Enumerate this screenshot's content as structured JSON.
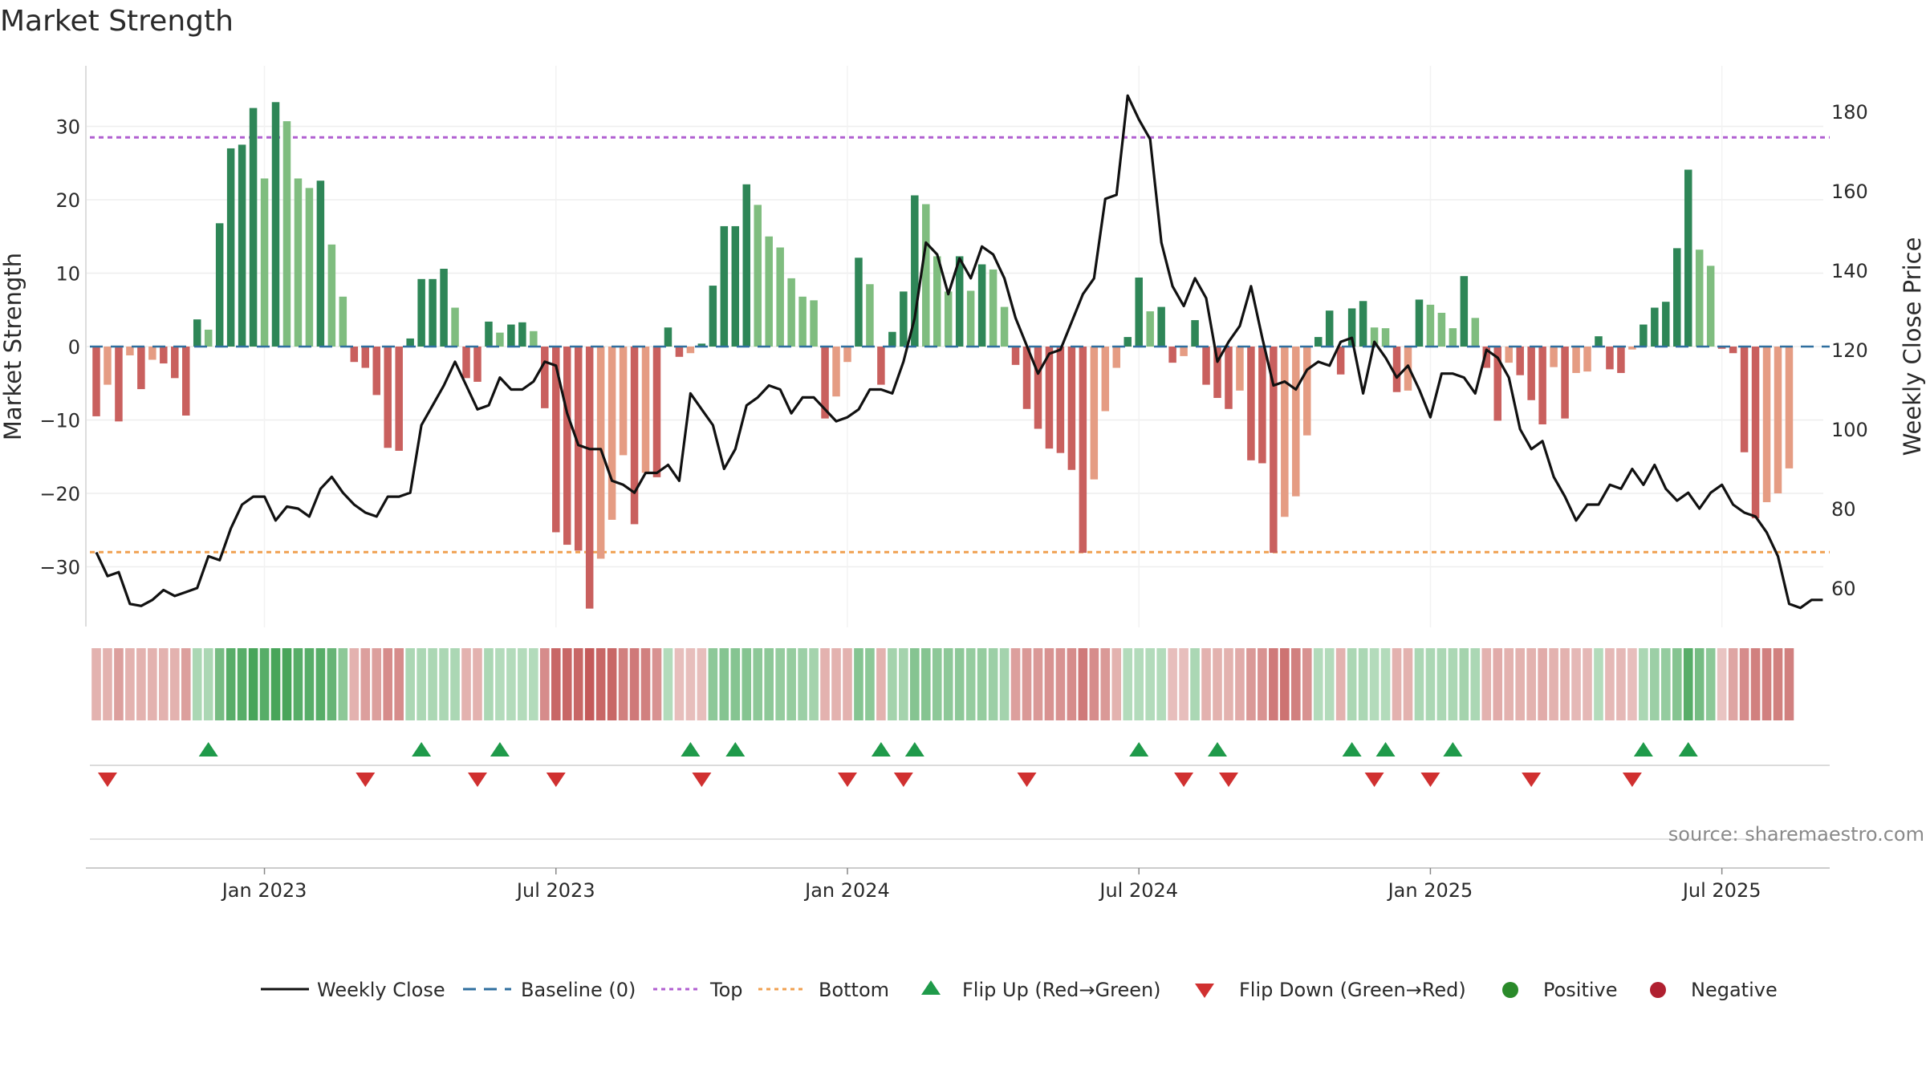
{
  "chart_data": {
    "type": "bar+line",
    "title": "Market Strength",
    "ylabel_left": "Market Strength",
    "ylabel_right": "Weekly Close Price",
    "ylim_left": [
      -38.5,
      38.5
    ],
    "ylim_right": [
      45,
      187
    ],
    "yticks_left": [
      30,
      20,
      10,
      0,
      -10,
      -20,
      -30
    ],
    "ytick_labels_left": [
      "30",
      "20",
      "10",
      "0",
      "−10",
      "−20",
      "−30"
    ],
    "yticks_right": [
      180,
      160,
      140,
      120,
      100,
      80,
      60
    ],
    "xtick_labels": [
      "Jan 2023",
      "Jul 2023",
      "Jan 2024",
      "Jul 2024",
      "Jan 2025",
      "Jul 2025"
    ],
    "xtick_weeks": [
      15,
      41,
      67,
      93,
      119,
      145
    ],
    "top_level": 28.5,
    "bottom_level": -28,
    "baseline": 0,
    "colors": {
      "pos_dark": "#2e8657",
      "pos_light": "#7fbd7f",
      "neg_dark": "#c9605e",
      "neg_light": "#e59c83",
      "top_line": "#b05fd0",
      "bottom_line": "#f0a050",
      "baseline": "#2f6f9f",
      "flip_up": "#1f9a4a",
      "flip_down": "#d03030",
      "positive_dot": "#2a8a2a",
      "negative_dot": "#b02030",
      "close_line": "#111111"
    },
    "series": [
      {
        "name": "Market Strength",
        "values": [
          -9.5,
          -5.2,
          -10.2,
          -1.2,
          -5.8,
          -1.8,
          -2.3,
          -4.3,
          -9.4,
          3.7,
          2.3,
          16.8,
          27,
          27.5,
          32.5,
          22.9,
          33.3,
          30.7,
          22.9,
          21.6,
          22.6,
          13.9,
          6.8,
          -2.1,
          -2.9,
          -6.6,
          -13.8,
          -14.2,
          1.1,
          9.2,
          9.2,
          10.6,
          5.3,
          -4.3,
          -4.8,
          3.4,
          1.9,
          3.0,
          3.3,
          2.1,
          -8.4,
          -25.3,
          -27.0,
          -27.8,
          -35.7,
          -28.9,
          -23.6,
          -14.8,
          -24.2,
          -17.2,
          -17.8,
          2.6,
          -1.4,
          -0.9,
          0.4,
          8.3,
          16.4,
          16.4,
          22.1,
          19.3,
          15.0,
          13.5,
          9.3,
          6.8,
          6.3,
          -9.8,
          -6.8,
          -2.1,
          12.1,
          8.5,
          -5.2,
          2.0,
          7.5,
          20.6,
          19.4,
          12.3,
          7.5,
          12.3,
          7.6,
          11.2,
          10.5,
          5.4,
          -2.5,
          -8.5,
          -11.2,
          -13.9,
          -14.5,
          -16.8,
          -28.1,
          -18.1,
          -8.8,
          -2.9,
          1.3,
          9.4,
          4.8,
          5.4,
          -2.2,
          -1.3,
          3.6,
          -5.2,
          -7.0,
          -8.5,
          -6.0,
          -15.5,
          -15.9,
          -28.1,
          -23.2,
          -20.4,
          -12.1,
          1.3,
          4.9,
          -3.8,
          5.2,
          6.2,
          2.6,
          2.5,
          -6.2,
          -6.0,
          6.4,
          5.7,
          4.6,
          2.5,
          9.6,
          3.9,
          -2.9,
          -10.1,
          -2.2,
          -3.9,
          -7.3,
          -10.6,
          -2.8,
          -9.8,
          -3.6,
          -3.4,
          1.4,
          -3.1,
          -3.6,
          -0.4,
          3.0,
          5.3,
          6.1,
          13.4,
          24.1,
          13.2,
          11.0,
          -0.3,
          -0.9,
          -14.4,
          -23.4,
          -21.2,
          -20.0,
          -16.6
        ]
      },
      {
        "name": "Weekly Close",
        "values": [
          69,
          63,
          64,
          56,
          55.5,
          57,
          59.5,
          58,
          59,
          60,
          68,
          67,
          75,
          81,
          83,
          83,
          77,
          80.5,
          80,
          78,
          85,
          88,
          84,
          81,
          79,
          78,
          83,
          83,
          84,
          101,
          106,
          111,
          117,
          111,
          105,
          106,
          113,
          110,
          110,
          112,
          117,
          116,
          104,
          96,
          95,
          95,
          87,
          86,
          84,
          89,
          89,
          91,
          87,
          109,
          105,
          101,
          90,
          95,
          106,
          108,
          111,
          110,
          104,
          108,
          108,
          105,
          102,
          103,
          105,
          110,
          110,
          109,
          117,
          128,
          147,
          144,
          134,
          143,
          138,
          146,
          144,
          138,
          128,
          121,
          114,
          119,
          120,
          127,
          134,
          138,
          158,
          159,
          184,
          178,
          173,
          147,
          136,
          131,
          138,
          133,
          117,
          122,
          126,
          136,
          123,
          111,
          112,
          110,
          115,
          117,
          116,
          122,
          123,
          109,
          122,
          118,
          113,
          116,
          110,
          103,
          114,
          114,
          113,
          109,
          120,
          118,
          113,
          100,
          95,
          97,
          88,
          83,
          77,
          81,
          81,
          86,
          85,
          90,
          86,
          91,
          85,
          82,
          84,
          80,
          84,
          86,
          81,
          79,
          78,
          74,
          68,
          56,
          55,
          57,
          57
        ]
      }
    ],
    "strength_band": {
      "name": "Strength regime band",
      "intensity": [
        -0.3,
        -0.3,
        -0.45,
        -0.3,
        -0.3,
        -0.3,
        -0.3,
        -0.3,
        -0.45,
        0.35,
        0.35,
        0.7,
        0.9,
        0.9,
        1.0,
        0.9,
        1.0,
        1.0,
        0.9,
        0.9,
        0.9,
        0.8,
        0.55,
        -0.3,
        -0.45,
        -0.45,
        -0.6,
        -0.6,
        0.35,
        0.35,
        0.35,
        0.35,
        0.35,
        -0.3,
        -0.3,
        0.35,
        0.3,
        0.3,
        0.3,
        0.3,
        -0.6,
        -0.9,
        -0.9,
        -0.9,
        -1.0,
        -0.9,
        -0.9,
        -0.7,
        -0.75,
        -0.7,
        -0.55,
        0.3,
        -0.2,
        -0.2,
        -0.2,
        0.55,
        0.6,
        0.6,
        0.6,
        0.55,
        0.55,
        0.5,
        0.5,
        0.45,
        0.4,
        -0.3,
        -0.3,
        -0.3,
        0.6,
        0.55,
        -0.3,
        0.4,
        0.4,
        0.6,
        0.6,
        0.55,
        0.55,
        0.55,
        0.5,
        0.5,
        0.45,
        0.4,
        -0.45,
        -0.5,
        -0.5,
        -0.55,
        -0.55,
        -0.6,
        -0.75,
        -0.6,
        -0.5,
        -0.3,
        0.3,
        0.3,
        0.3,
        0.3,
        -0.2,
        -0.2,
        0.35,
        -0.3,
        -0.3,
        -0.3,
        -0.35,
        -0.5,
        -0.55,
        -0.75,
        -0.8,
        -0.7,
        -0.55,
        0.3,
        0.3,
        -0.3,
        0.35,
        0.35,
        0.3,
        0.3,
        -0.3,
        -0.3,
        0.35,
        0.35,
        0.35,
        0.35,
        0.4,
        0.35,
        -0.3,
        -0.35,
        -0.3,
        -0.3,
        -0.3,
        -0.35,
        -0.3,
        -0.3,
        -0.25,
        -0.25,
        0.3,
        -0.25,
        -0.25,
        -0.2,
        0.35,
        0.45,
        0.5,
        0.6,
        0.9,
        0.7,
        0.55,
        -0.15,
        -0.4,
        -0.6,
        -0.7,
        -0.7,
        -0.7,
        -0.7
      ]
    },
    "flip_up_weeks": [
      10,
      29,
      36,
      53,
      57,
      70,
      73,
      93,
      100,
      112,
      115,
      121,
      138,
      142
    ],
    "flip_down_weeks": [
      1,
      24,
      34,
      41,
      54,
      67,
      72,
      83,
      97,
      101,
      114,
      119,
      128,
      137
    ],
    "legend": {
      "items": [
        "Weekly Close",
        "Baseline (0)",
        "Top",
        "Bottom",
        "Flip Up (Red→Green)",
        "Flip Down (Green→Red)",
        "Positive",
        "Negative"
      ],
      "position": "bottom-center"
    },
    "source_note": "source: sharemaestro.com"
  }
}
